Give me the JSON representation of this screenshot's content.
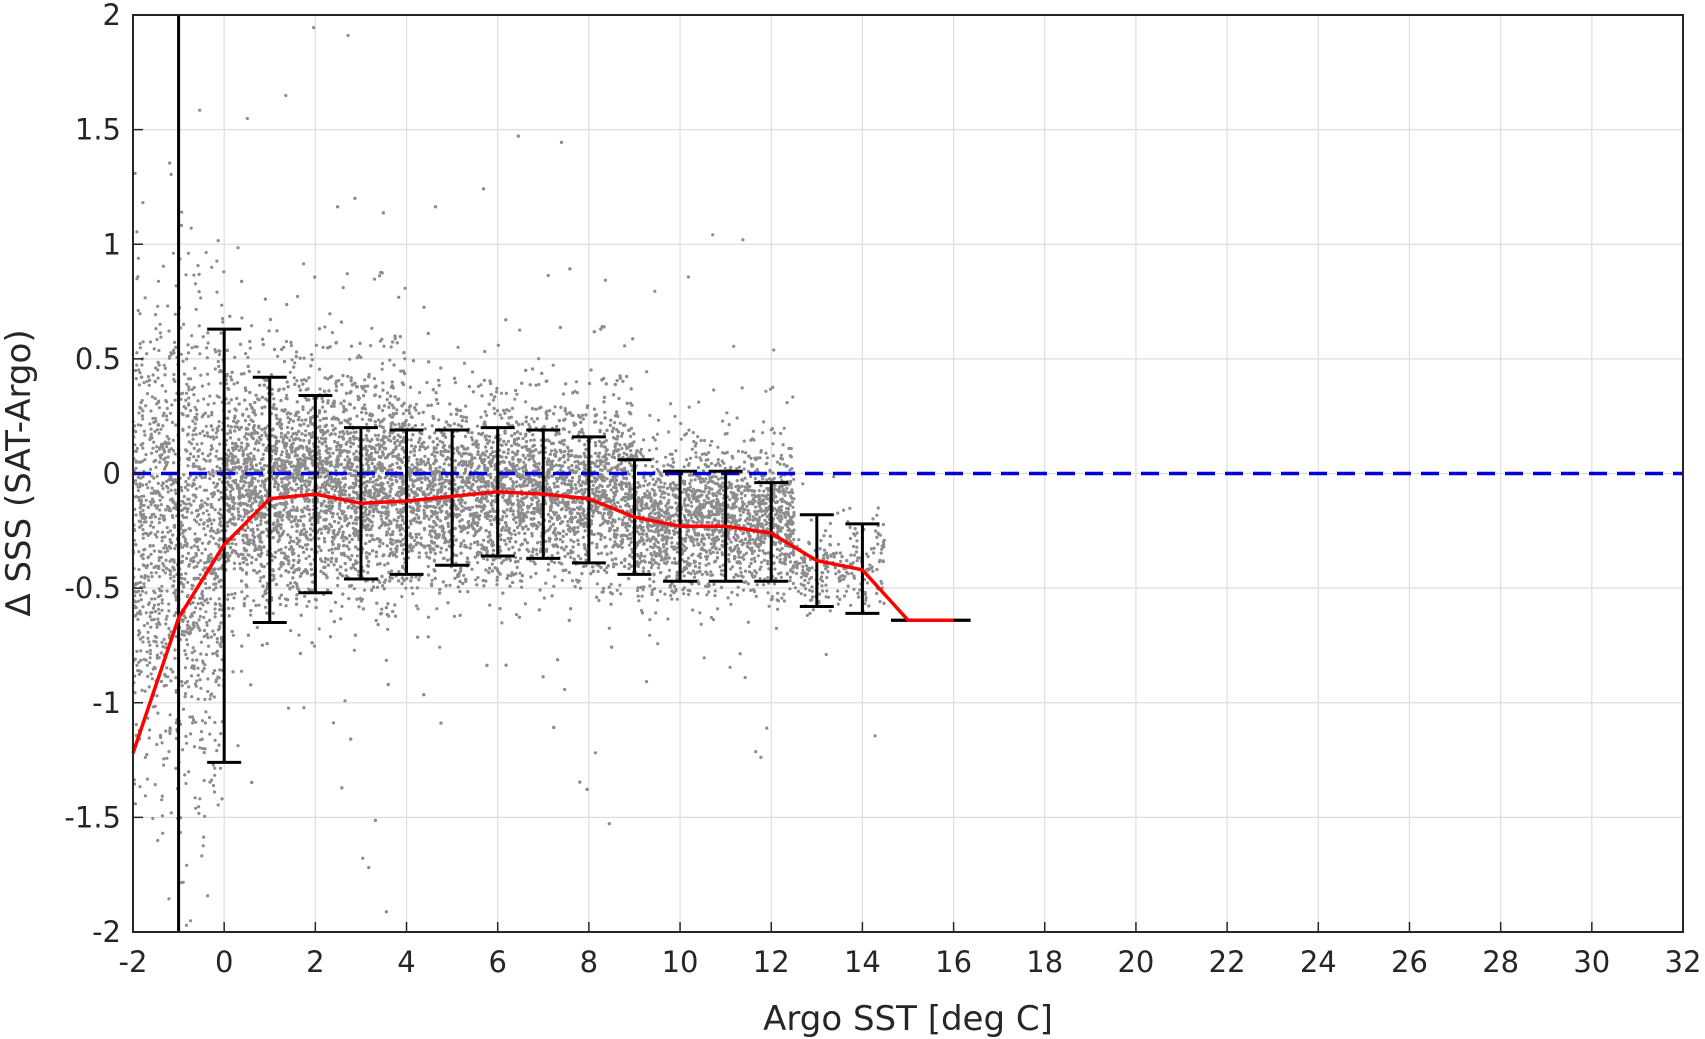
{
  "chart_data": {
    "type": "scatter",
    "xlabel": "Argo SST [deg C]",
    "ylabel": "Δ SSS (SAT-Argo)",
    "xlim": [
      -2,
      32
    ],
    "ylim": [
      -2,
      2
    ],
    "x_ticks": [
      -2,
      0,
      2,
      4,
      6,
      8,
      10,
      12,
      14,
      16,
      18,
      20,
      22,
      24,
      26,
      28,
      30,
      32
    ],
    "y_ticks": [
      -2,
      -1.5,
      -1,
      -0.5,
      0,
      0.5,
      1,
      1.5,
      2
    ],
    "x_tick_labels": [
      "-2",
      "0",
      "2",
      "4",
      "6",
      "8",
      "10",
      "12",
      "14",
      "16",
      "18",
      "20",
      "22",
      "24",
      "26",
      "28",
      "30",
      "32"
    ],
    "y_tick_labels": [
      "-2",
      "-1.5",
      "-1",
      "-0.5",
      "0",
      "0.5",
      "1",
      "1.5",
      "2"
    ],
    "grid": true,
    "reference_line": {
      "y": 0,
      "style": "dashed",
      "color": "#0000dd"
    },
    "vertical_line": {
      "x": -1,
      "color": "#000000"
    },
    "mean_line": {
      "color": "#ff0000",
      "x": [
        -2,
        -1,
        0,
        1,
        2,
        3,
        4,
        5,
        6,
        7,
        8,
        9,
        10,
        11,
        12,
        13,
        14,
        15,
        16
      ],
      "y": [
        -1.22,
        -0.63,
        -0.31,
        -0.11,
        -0.09,
        -0.13,
        -0.12,
        -0.1,
        -0.08,
        -0.09,
        -0.11,
        -0.19,
        -0.23,
        -0.23,
        -0.26,
        -0.38,
        -0.42,
        -0.64,
        -0.64
      ]
    },
    "error_bars": {
      "color": "#000000",
      "x": [
        0,
        1,
        2,
        3,
        4,
        5,
        6,
        7,
        8,
        9,
        10,
        11,
        12,
        13,
        14,
        15,
        16
      ],
      "upper": [
        0.63,
        0.42,
        0.34,
        0.2,
        0.19,
        0.19,
        0.2,
        0.19,
        0.16,
        0.06,
        0.01,
        0.01,
        -0.04,
        -0.18,
        -0.22,
        -0.64,
        -0.64
      ],
      "lower": [
        -1.26,
        -0.65,
        -0.52,
        -0.46,
        -0.44,
        -0.4,
        -0.36,
        -0.37,
        -0.39,
        -0.44,
        -0.47,
        -0.47,
        -0.47,
        -0.58,
        -0.61,
        -0.64,
        -0.64
      ]
    },
    "scatter": {
      "color": "#8c8c8c",
      "description_by_temperature": {
        "x_range": [
          -2,
          14.5
        ],
        "clusters": [
          {
            "x": [
              -2,
              0
            ],
            "y_center": -0.3,
            "y_spread": 0.9
          },
          {
            "x": [
              0,
              4
            ],
            "y_center": -0.05,
            "y_spread": 0.45
          },
          {
            "x": [
              4,
              9
            ],
            "y_center": -0.08,
            "y_spread": 0.35
          },
          {
            "x": [
              9,
              12.5
            ],
            "y_center": -0.2,
            "y_spread": 0.28
          },
          {
            "x": [
              12.5,
              14.5
            ],
            "y_center": -0.4,
            "y_spread": 0.18
          }
        ]
      }
    }
  }
}
